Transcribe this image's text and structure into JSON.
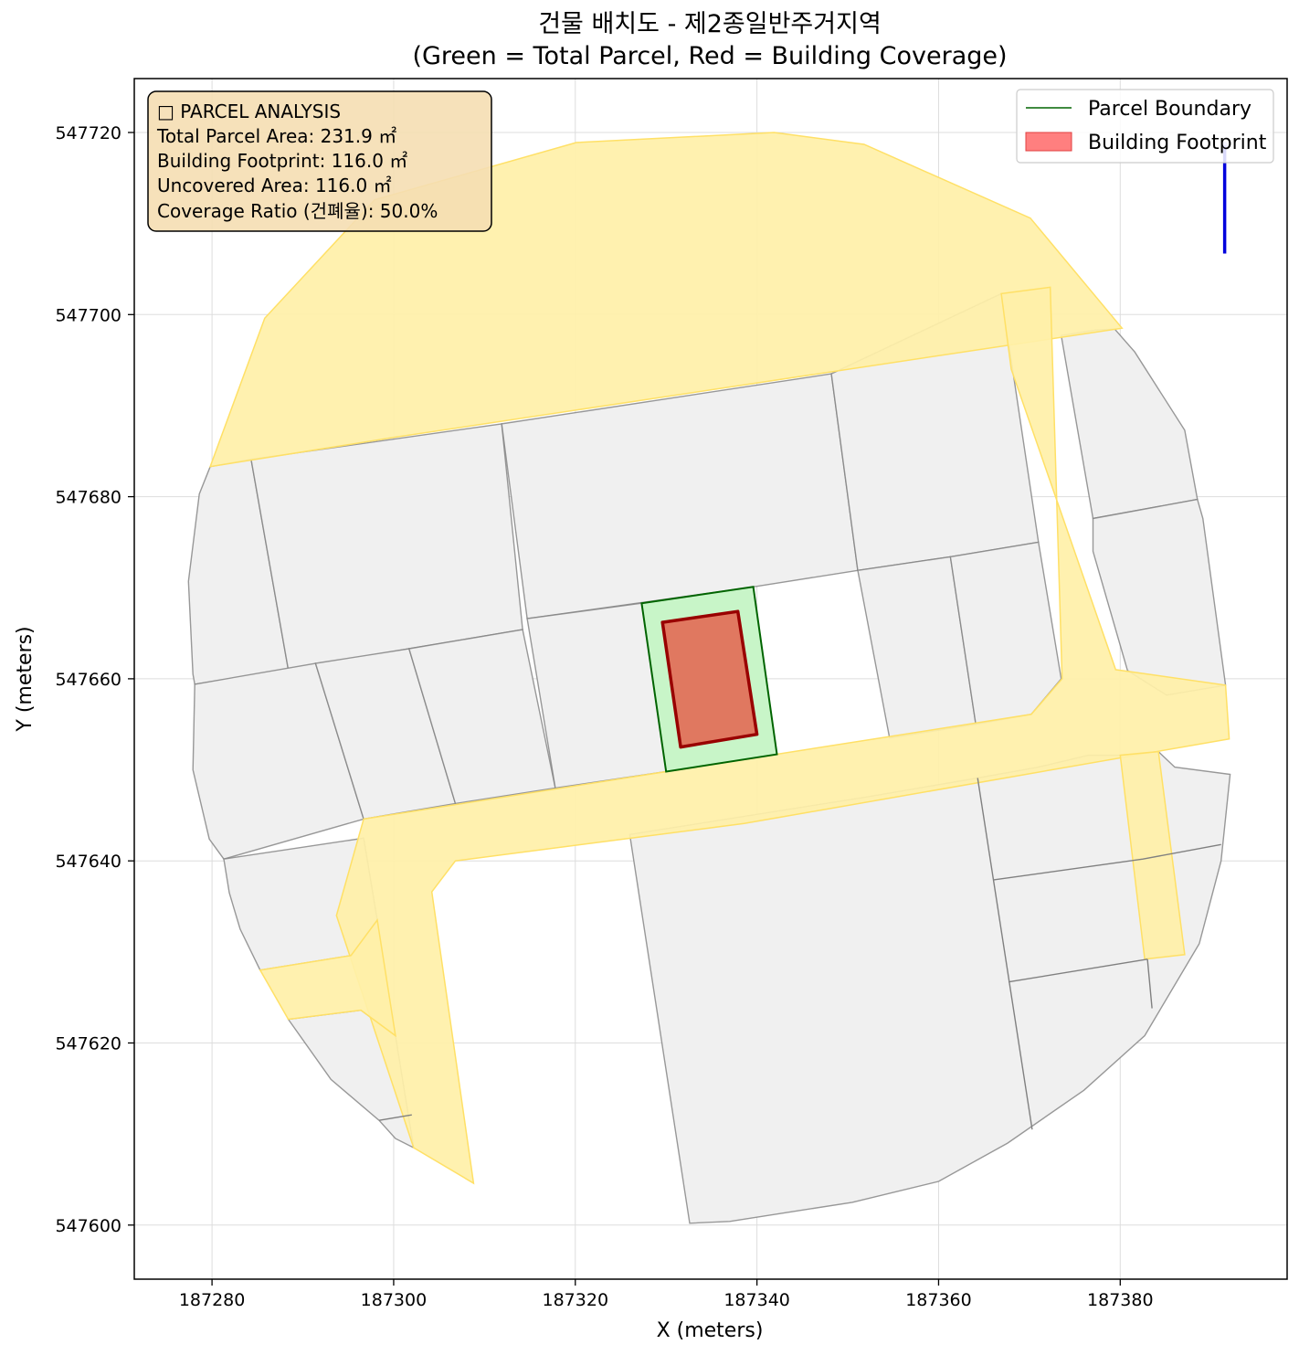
{
  "title_line1": "건물 배치도 - 제2종일반주거지역",
  "title_line2": "(Green = Total Parcel, Red = Building Coverage)",
  "x_axis_label": "X (meters)",
  "y_axis_label": "Y (meters)",
  "info_box": {
    "heading": "□ PARCEL ANALYSIS",
    "total_parcel_area": "Total Parcel Area: 231.9 ㎡",
    "building_footprint": "Building Footprint: 116.0 ㎡",
    "uncovered_area": "Uncovered Area: 116.0 ㎡",
    "coverage_ratio": "Coverage Ratio (건폐율): 50.0%"
  },
  "legend": {
    "placement": "top-right",
    "items": [
      {
        "label": "Parcel Boundary",
        "color": "#006400",
        "kind": "line"
      },
      {
        "label": "Building Footprint",
        "color": "#ff7f7f",
        "kind": "patch"
      }
    ]
  },
  "colors": {
    "parcel_fill": "#c8f5c8",
    "parcel_edge": "#006400",
    "building_fill": "#e07860",
    "building_edge": "#990000",
    "road_fill": "#fff0a8",
    "road_line": "#ffe066",
    "lot_fill": "#f0f0f0",
    "lot_edge": "#808080",
    "north_arrow": "#0000dd"
  },
  "chart_data": {
    "type": "map",
    "title": "건물 배치도 - 제2종일반주거지역 (Green = Total Parcel, Red = Building Coverage)",
    "xlabel": "X (meters)",
    "ylabel": "Y (meters)",
    "xlim": [
      187272,
      187398
    ],
    "ylim": [
      547594,
      547726
    ],
    "grid": true,
    "xticks": [
      187280,
      187300,
      187320,
      187340,
      187360,
      187380
    ],
    "yticks": [
      547600,
      547620,
      547640,
      547660,
      547680,
      547700,
      547720
    ],
    "parcel_boundary": [
      [
        187327.3,
        547668.3
      ],
      [
        187339.6,
        547670.1
      ],
      [
        187342.2,
        547651.7
      ],
      [
        187330.0,
        547649.8
      ]
    ],
    "building_footprint": [
      [
        187329.6,
        547666.2
      ],
      [
        187337.9,
        547667.4
      ],
      [
        187340.0,
        547653.9
      ],
      [
        187331.6,
        547652.5
      ]
    ],
    "parcel_area_m2": 231.9,
    "building_area_m2": 116.0,
    "uncovered_area_m2": 116.0,
    "coverage_ratio_pct": 50.0,
    "north_arrow": {
      "x": 187391.5,
      "y_from": 547706.7,
      "y_to": 547718.6
    },
    "roads": [
      [
        [
          187279.8,
          547683.3
        ],
        [
          187285.8,
          547699.6
        ],
        [
          187297.9,
          547712.6
        ],
        [
          187320.1,
          547718.9
        ],
        [
          187341.9,
          547720.0
        ],
        [
          187351.8,
          547718.7
        ],
        [
          187370.1,
          547710.6
        ],
        [
          187380.2,
          547698.5
        ],
        [
          187300.0,
          547686.5
        ]
      ],
      [
        [
          187296.7,
          547644.6
        ],
        [
          187370.2,
          547656.1
        ],
        [
          187373.6,
          547660.0
        ],
        [
          187372.3,
          547703.0
        ],
        [
          187366.9,
          547702.3
        ],
        [
          187368.0,
          547694.0
        ],
        [
          187379.5,
          547661.0
        ],
        [
          187391.6,
          547659.3
        ],
        [
          187392.0,
          547653.4
        ],
        [
          187338.6,
          547644.1
        ],
        [
          187306.8,
          547640.0
        ],
        [
          187304.2,
          547636.6
        ],
        [
          187308.8,
          547604.6
        ],
        [
          187302.2,
          547608.5
        ],
        [
          187293.7,
          547634.0
        ]
      ],
      [
        [
          187285.3,
          547628.0
        ],
        [
          187295.3,
          547629.6
        ],
        [
          187298.2,
          547633.5
        ],
        [
          187300.2,
          547620.8
        ],
        [
          187296.4,
          547623.6
        ],
        [
          187288.4,
          547622.6
        ]
      ],
      [
        [
          187380.0,
          547651.6
        ],
        [
          187382.7,
          547629.2
        ],
        [
          187387.1,
          547629.7
        ],
        [
          187384.2,
          547652.0
        ]
      ]
    ],
    "lots": [
      [
        [
          187279.8,
          547683.3
        ],
        [
          187278.6,
          547680.3
        ],
        [
          187277.4,
          547670.7
        ],
        [
          187277.9,
          547660.5
        ],
        [
          187278.1,
          547659.4
        ],
        [
          187288.4,
          547661.0
        ],
        [
          187284.3,
          547684.1
        ]
      ],
      [
        [
          187284.3,
          547684.1
        ],
        [
          187288.4,
          547661.0
        ],
        [
          187301.7,
          547663.3
        ],
        [
          187314.2,
          547665.4
        ],
        [
          187311.9,
          547688.0
        ]
      ],
      [
        [
          187311.9,
          547688.0
        ],
        [
          187314.7,
          547666.6
        ],
        [
          187339.6,
          547670.1
        ],
        [
          187351.1,
          547671.9
        ],
        [
          187348.2,
          547693.5
        ]
      ],
      [
        [
          187348.2,
          547693.5
        ],
        [
          187351.1,
          547671.9
        ],
        [
          187361.3,
          547673.4
        ],
        [
          187371.0,
          547675.0
        ],
        [
          187366.9,
          547702.3
        ]
      ],
      [
        [
          187377.3,
          547698.3
        ],
        [
          187379.4,
          547698.4
        ],
        [
          187381.6,
          547695.9
        ],
        [
          187387.1,
          547687.3
        ],
        [
          187388.5,
          547679.7
        ],
        [
          187377.0,
          547677.6
        ],
        [
          187373.5,
          547697.7
        ]
      ],
      [
        [
          187377.0,
          547677.6
        ],
        [
          187388.5,
          547679.7
        ],
        [
          187389.1,
          547677.6
        ],
        [
          187391.6,
          547659.3
        ],
        [
          187385.1,
          547658.2
        ],
        [
          187380.8,
          547660.9
        ],
        [
          187377.0,
          547674.0
        ]
      ],
      [
        [
          187351.1,
          547671.9
        ],
        [
          187361.3,
          547673.4
        ],
        [
          187364.1,
          547655.0
        ],
        [
          187354.6,
          547653.5
        ]
      ],
      [
        [
          187361.3,
          547673.4
        ],
        [
          187371.0,
          547675.0
        ],
        [
          187373.5,
          547660.0
        ],
        [
          187370.2,
          547656.1
        ],
        [
          187364.1,
          547655.0
        ]
      ],
      [
        [
          187278.1,
          547659.4
        ],
        [
          187291.4,
          547661.7
        ],
        [
          187296.7,
          547644.6
        ],
        [
          187281.3,
          547640.2
        ],
        [
          187279.7,
          547642.4
        ],
        [
          187277.9,
          547650.0
        ]
      ],
      [
        [
          187291.4,
          547661.7
        ],
        [
          187301.7,
          547663.3
        ],
        [
          187306.8,
          547646.3
        ],
        [
          187296.7,
          547644.6
        ]
      ],
      [
        [
          187301.7,
          547663.3
        ],
        [
          187314.2,
          547665.4
        ],
        [
          187317.8,
          547648.0
        ],
        [
          187306.8,
          547646.3
        ]
      ],
      [
        [
          187314.7,
          547666.6
        ],
        [
          187327.3,
          547668.3
        ],
        [
          187330.0,
          547649.8
        ],
        [
          187317.8,
          547648.0
        ]
      ],
      [
        [
          187281.3,
          547640.2
        ],
        [
          187296.7,
          547642.5
        ],
        [
          187298.2,
          547633.5
        ],
        [
          187295.3,
          547629.6
        ],
        [
          187285.3,
          547628.0
        ],
        [
          187283.1,
          547632.5
        ],
        [
          187281.9,
          547636.5
        ]
      ],
      [
        [
          187288.4,
          547622.6
        ],
        [
          187296.4,
          547623.6
        ],
        [
          187300.2,
          547620.8
        ],
        [
          187302.2,
          547608.5
        ],
        [
          187300.2,
          547609.5
        ],
        [
          187298.4,
          547611.5
        ],
        [
          187293.1,
          547616.0
        ]
      ],
      [
        [
          187326.0,
          547642.9
        ],
        [
          187352.0,
          547647.0
        ],
        [
          187364.3,
          547649.1
        ],
        [
          187371.0,
          547650.3
        ],
        [
          187376.5,
          547651.6
        ],
        [
          187380.0,
          547651.6
        ],
        [
          187384.2,
          547652.0
        ],
        [
          187386.0,
          547650.3
        ],
        [
          187392.1,
          547649.5
        ],
        [
          187391.1,
          547640.0
        ],
        [
          187388.7,
          547630.9
        ],
        [
          187382.7,
          547620.8
        ],
        [
          187376.0,
          547614.8
        ],
        [
          187367.6,
          547609.0
        ],
        [
          187360.0,
          547604.8
        ],
        [
          187350.5,
          547602.5
        ],
        [
          187337.0,
          547600.4
        ],
        [
          187332.6,
          547600.2
        ]
      ]
    ],
    "lot_dividers": [
      [
        [
          187366.0,
          547637.9
        ],
        [
          187382.5,
          547640.2
        ],
        [
          187391.1,
          547641.8
        ]
      ],
      [
        [
          187367.7,
          547626.7
        ],
        [
          187383.0,
          547629.2
        ]
      ],
      [
        [
          187364.3,
          547649.1
        ],
        [
          187370.3,
          547610.5
        ]
      ],
      [
        [
          187383.0,
          547629.2
        ],
        [
          187383.5,
          547623.8
        ]
      ],
      [
        [
          187298.4,
          547611.5
        ],
        [
          187302.0,
          547612.1
        ]
      ]
    ]
  }
}
